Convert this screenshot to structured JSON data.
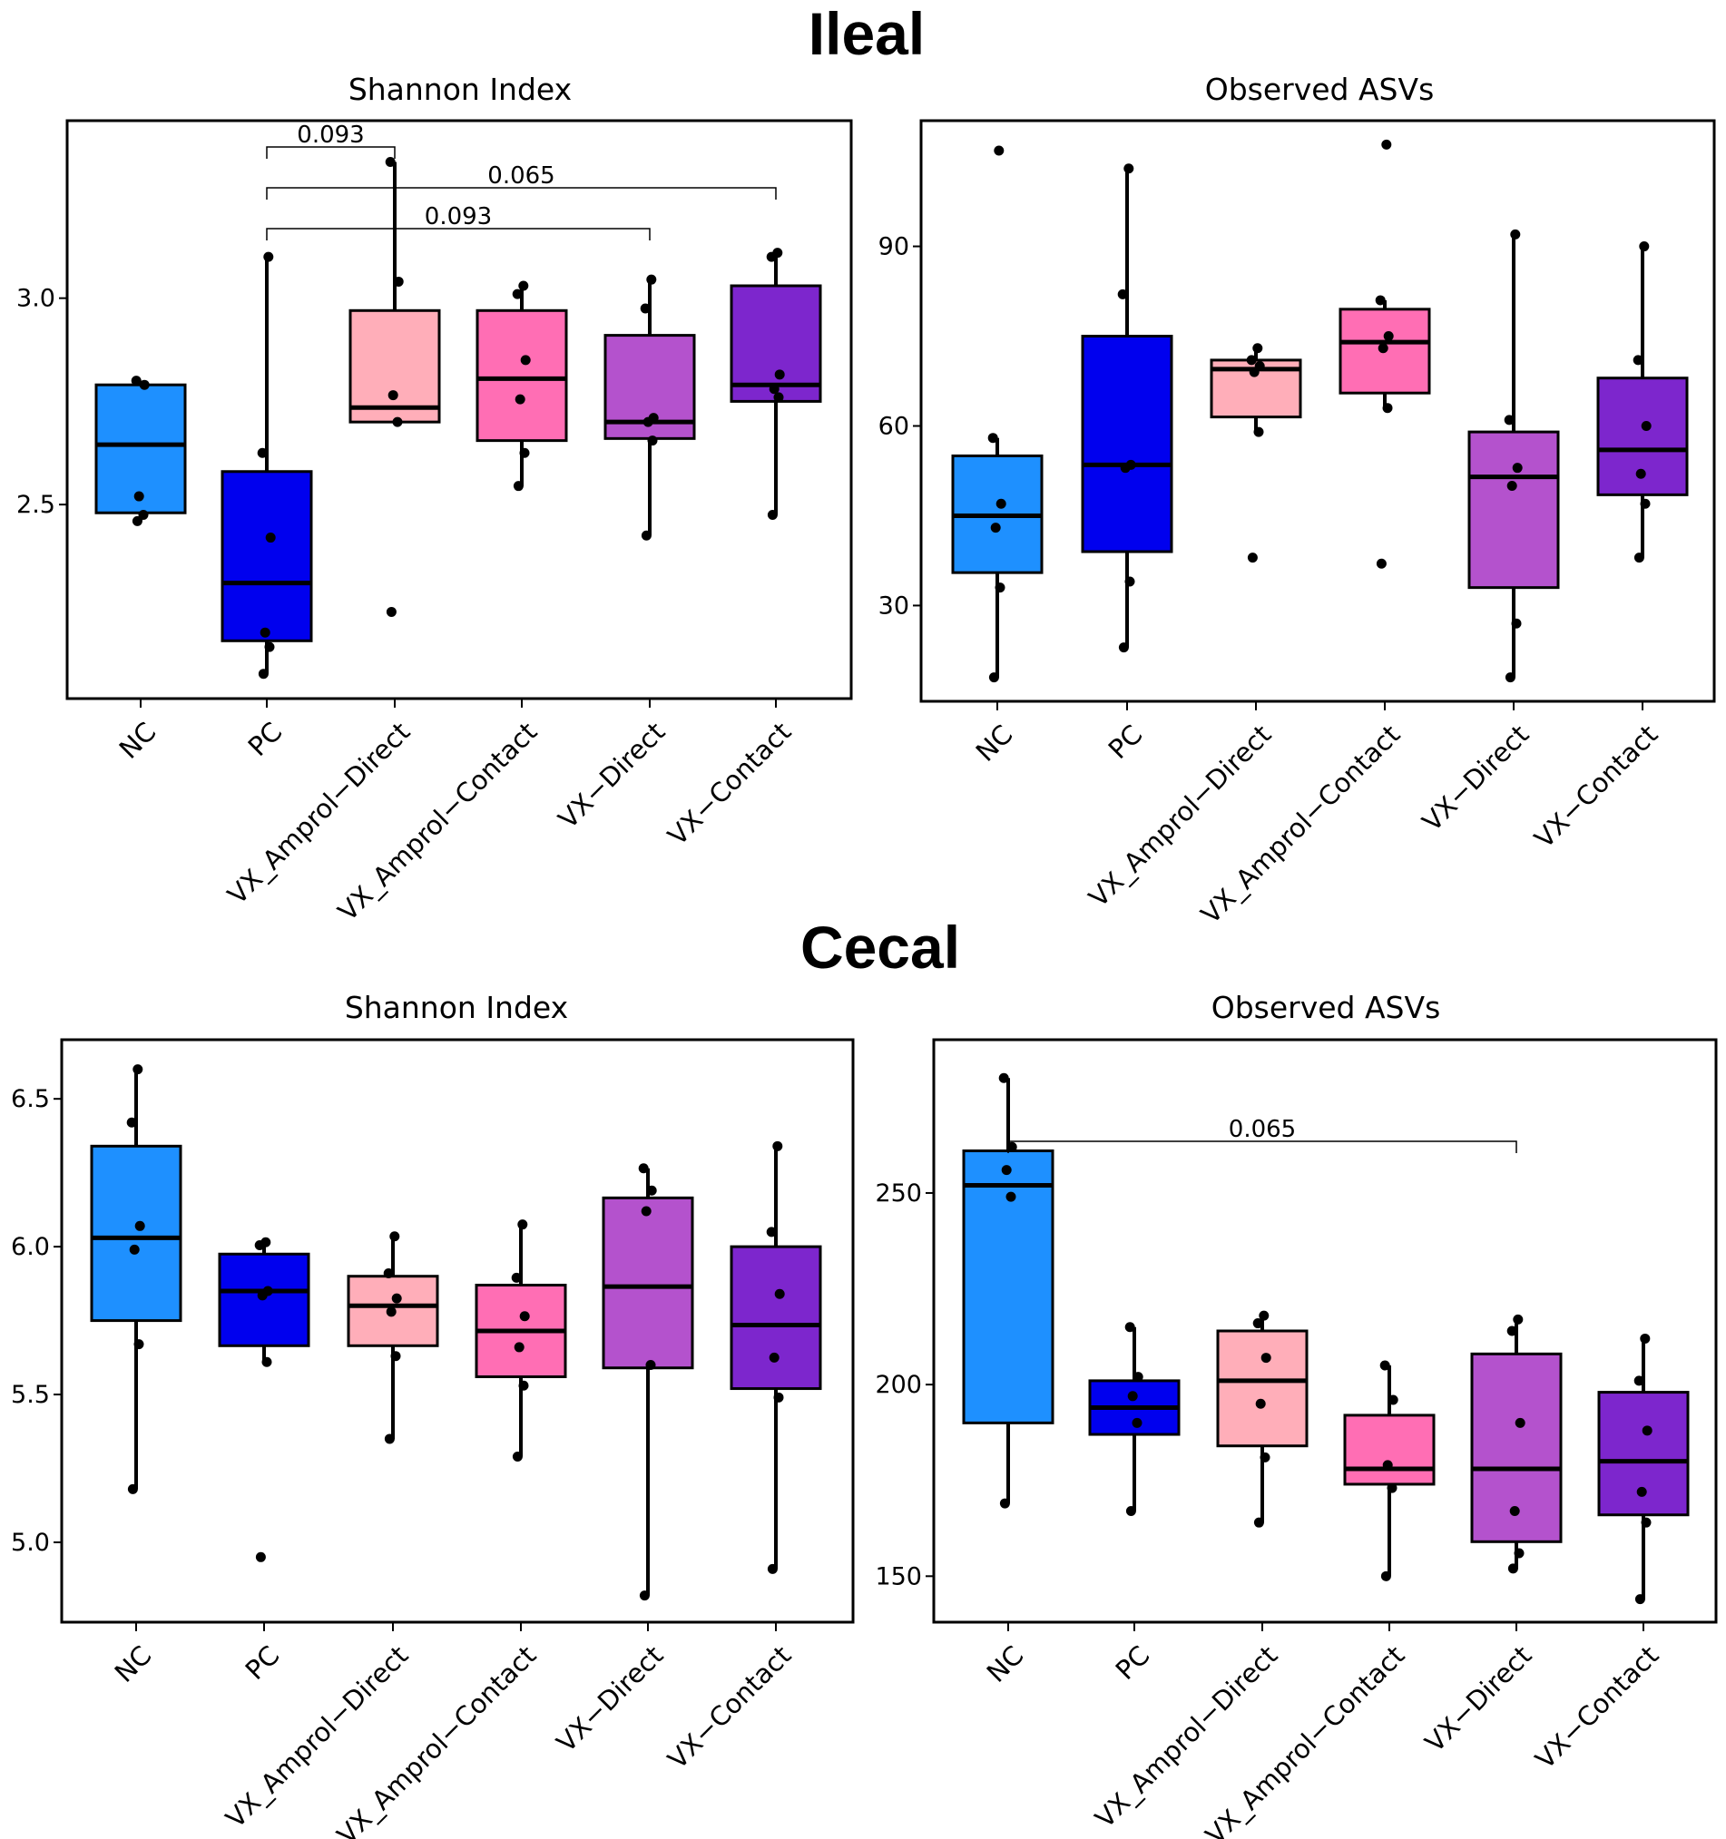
{
  "sections": [
    {
      "title": "Ileal"
    },
    {
      "title": "Cecal"
    }
  ],
  "categories": [
    "NC",
    "PC",
    "VX_Amprol−Direct",
    "VX_Amprol−Contact",
    "VX−Direct",
    "VX−Contact"
  ],
  "colors": [
    "#1e90ff",
    "#0000ee",
    "#ffaeb9",
    "#ff6eb4",
    "#b452cd",
    "#7d26cd"
  ],
  "chart_data": [
    {
      "type": "box",
      "section": "Ileal",
      "title": "Shannon Index",
      "xlabel": "",
      "ylabel": "",
      "ylim": [
        2.03,
        3.43
      ],
      "yticks": [
        2.5,
        3.0
      ],
      "tick_labels": [
        "2.5",
        "3.0"
      ],
      "categories": [
        "NC",
        "PC",
        "VX_Amprol−Direct",
        "VX_Amprol−Contact",
        "VX−Direct",
        "VX−Contact"
      ],
      "boxes": [
        {
          "q1": 2.48,
          "median": 2.645,
          "q3": 2.79,
          "whisker_low": 2.46,
          "whisker_high": 2.8
        },
        {
          "q1": 2.17,
          "median": 2.31,
          "q3": 2.58,
          "whisker_low": 2.09,
          "whisker_high": 3.1
        },
        {
          "q1": 2.7,
          "median": 2.735,
          "q3": 2.97,
          "whisker_low": 2.7,
          "whisker_high": 3.33
        },
        {
          "q1": 2.655,
          "median": 2.805,
          "q3": 2.97,
          "whisker_low": 2.545,
          "whisker_high": 3.03
        },
        {
          "q1": 2.66,
          "median": 2.7,
          "q3": 2.91,
          "whisker_low": 2.425,
          "whisker_high": 3.045
        },
        {
          "q1": 2.75,
          "median": 2.79,
          "q3": 3.03,
          "whisker_low": 2.475,
          "whisker_high": 3.11
        }
      ],
      "points": [
        [
          2.46,
          2.475,
          2.52,
          2.79,
          2.8
        ],
        [
          2.09,
          2.155,
          2.19,
          2.42,
          2.625,
          3.1
        ],
        [
          2.24,
          2.7,
          2.765,
          3.04,
          3.33
        ],
        [
          2.545,
          2.625,
          2.755,
          2.85,
          3.01,
          3.03
        ],
        [
          2.425,
          2.655,
          2.7,
          2.71,
          2.975,
          3.045
        ],
        [
          2.475,
          2.76,
          2.78,
          2.815,
          3.1,
          3.11
        ]
      ],
      "brackets": [
        {
          "from": "PC",
          "to": "VX_Amprol−Direct",
          "label": "0.093"
        },
        {
          "from": "PC",
          "to": "VX−Contact",
          "label": "0.065"
        },
        {
          "from": "PC",
          "to": "VX−Direct",
          "label": "0.093"
        }
      ]
    },
    {
      "type": "box",
      "section": "Ileal",
      "title": "Observed ASVs",
      "xlabel": "",
      "ylabel": "",
      "ylim": [
        14,
        111
      ],
      "yticks": [
        30,
        60,
        90
      ],
      "tick_labels": [
        "30",
        "60",
        "90"
      ],
      "categories": [
        "NC",
        "PC",
        "VX_Amprol−Direct",
        "VX_Amprol−Contact",
        "VX−Direct",
        "VX−Contact"
      ],
      "boxes": [
        {
          "q1": 35.5,
          "median": 45,
          "q3": 55,
          "whisker_low": 18,
          "whisker_high": 58
        },
        {
          "q1": 39,
          "median": 53.5,
          "q3": 75,
          "whisker_low": 23,
          "whisker_high": 103
        },
        {
          "q1": 61.5,
          "median": 69.5,
          "q3": 71,
          "whisker_low": 59,
          "whisker_high": 73
        },
        {
          "q1": 65.5,
          "median": 74,
          "q3": 79.5,
          "whisker_low": 63,
          "whisker_high": 81
        },
        {
          "q1": 33,
          "median": 51.5,
          "q3": 59,
          "whisker_low": 18,
          "whisker_high": 92
        },
        {
          "q1": 48.5,
          "median": 56,
          "q3": 68,
          "whisker_low": 38,
          "whisker_high": 90
        }
      ],
      "points": [
        [
          18,
          33,
          43,
          47,
          58,
          106
        ],
        [
          23,
          34,
          53,
          53.5,
          82,
          103
        ],
        [
          38,
          59,
          69,
          70,
          71,
          73
        ],
        [
          37,
          63,
          73,
          75,
          81,
          107
        ],
        [
          18,
          27,
          50,
          53,
          61,
          92
        ],
        [
          38,
          47,
          52,
          60,
          71,
          90
        ]
      ],
      "brackets": []
    },
    {
      "type": "box",
      "section": "Cecal",
      "title": "Shannon Index",
      "xlabel": "",
      "ylabel": "",
      "ylim": [
        4.73,
        6.7
      ],
      "yticks": [
        5.0,
        5.5,
        6.0,
        6.5
      ],
      "tick_labels": [
        "5.0",
        "5.5",
        "6.0",
        "6.5"
      ],
      "categories": [
        "NC",
        "PC",
        "VX_Amprol−Direct",
        "VX_Amprol−Contact",
        "VX−Direct",
        "VX−Contact"
      ],
      "boxes": [
        {
          "q1": 5.75,
          "median": 6.03,
          "q3": 6.34,
          "whisker_low": 5.18,
          "whisker_high": 6.6
        },
        {
          "q1": 5.665,
          "median": 5.85,
          "q3": 5.975,
          "whisker_low": 5.61,
          "whisker_high": 6.015
        },
        {
          "q1": 5.665,
          "median": 5.8,
          "q3": 5.9,
          "whisker_low": 5.35,
          "whisker_high": 6.035
        },
        {
          "q1": 5.56,
          "median": 5.715,
          "q3": 5.87,
          "whisker_low": 5.29,
          "whisker_high": 6.075
        },
        {
          "q1": 5.59,
          "median": 5.865,
          "q3": 6.165,
          "whisker_low": 4.82,
          "whisker_high": 6.265
        },
        {
          "q1": 5.52,
          "median": 5.735,
          "q3": 6.0,
          "whisker_low": 4.91,
          "whisker_high": 6.34
        }
      ],
      "points": [
        [
          5.18,
          5.67,
          5.99,
          6.07,
          6.42,
          6.6
        ],
        [
          4.95,
          5.61,
          5.835,
          5.85,
          6.005,
          6.015
        ],
        [
          5.35,
          5.63,
          5.78,
          5.825,
          5.91,
          6.035
        ],
        [
          5.29,
          5.53,
          5.66,
          5.765,
          5.895,
          6.075
        ],
        [
          4.82,
          5.6,
          6.12,
          6.19,
          6.265
        ],
        [
          4.91,
          5.49,
          5.625,
          5.84,
          6.05,
          6.34
        ]
      ],
      "brackets": []
    },
    {
      "type": "box",
      "section": "Cecal",
      "title": "Observed ASVs",
      "xlabel": "",
      "ylabel": "",
      "ylim": [
        138,
        290
      ],
      "yticks": [
        150,
        200,
        250
      ],
      "tick_labels": [
        "150",
        "200",
        "250"
      ],
      "categories": [
        "NC",
        "PC",
        "VX_Amprol−Direct",
        "VX_Amprol−Contact",
        "VX−Direct",
        "VX−Contact"
      ],
      "boxes": [
        {
          "q1": 190,
          "median": 252,
          "q3": 261,
          "whisker_low": 169,
          "whisker_high": 280
        },
        {
          "q1": 187,
          "median": 194,
          "q3": 201,
          "whisker_low": 167,
          "whisker_high": 215
        },
        {
          "q1": 184,
          "median": 201,
          "q3": 214,
          "whisker_low": 164,
          "whisker_high": 218
        },
        {
          "q1": 174,
          "median": 178,
          "q3": 192,
          "whisker_low": 150,
          "whisker_high": 205
        },
        {
          "q1": 159,
          "median": 178,
          "q3": 208,
          "whisker_low": 152,
          "whisker_high": 217
        },
        {
          "q1": 166,
          "median": 180,
          "q3": 198,
          "whisker_low": 144,
          "whisker_high": 212
        }
      ],
      "points": [
        [
          169,
          249,
          256,
          262,
          280
        ],
        [
          167,
          190,
          197,
          202,
          215
        ],
        [
          164,
          181,
          195,
          207,
          216,
          218
        ],
        [
          150,
          173,
          179,
          196,
          205
        ],
        [
          152,
          156,
          167,
          190,
          214,
          217
        ],
        [
          144,
          164,
          172,
          188,
          201,
          212
        ]
      ],
      "brackets": [
        {
          "from": "NC",
          "to": "VX−Direct",
          "label": "0.065"
        }
      ]
    }
  ]
}
